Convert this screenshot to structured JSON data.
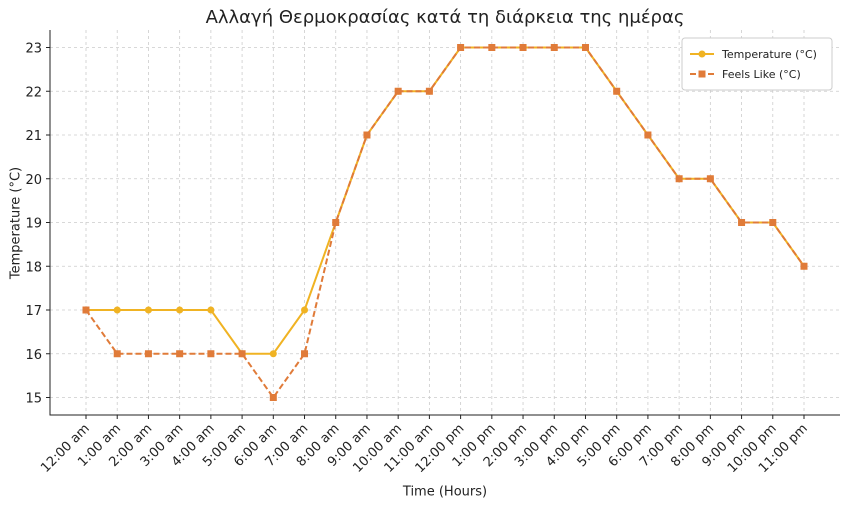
{
  "chart_data": {
    "type": "line",
    "title": "Αλλαγή Θερμοκρασίας κατά τη διάρκεια της ημέρας",
    "x_label": "Time (Hours)",
    "y_label": "Temperature (°C)",
    "categories": [
      "12:00 am",
      "1:00 am",
      "2:00 am",
      "3:00 am",
      "4:00 am",
      "5:00 am",
      "6:00 am",
      "7:00 am",
      "8:00 am",
      "9:00 am",
      "10:00 am",
      "11:00 am",
      "12:00 pm",
      "1:00 pm",
      "2:00 pm",
      "3:00 pm",
      "4:00 pm",
      "5:00 pm",
      "6:00 pm",
      "7:00 pm",
      "8:00 pm",
      "9:00 pm",
      "10:00 pm",
      "11:00 pm"
    ],
    "series": [
      {
        "name": "Temperature (°C)",
        "color": "#f0b323",
        "dashed": false,
        "marker": "circle",
        "values": [
          17,
          17,
          17,
          17,
          17,
          16,
          16,
          17,
          19,
          21,
          22,
          22,
          23,
          23,
          23,
          23,
          23,
          22,
          21,
          20,
          20,
          19,
          19,
          18
        ]
      },
      {
        "name": "Feels Like (°C)",
        "color": "#e07b39",
        "dashed": true,
        "marker": "square",
        "values": [
          17,
          16,
          16,
          16,
          16,
          16,
          15,
          16,
          19,
          21,
          22,
          22,
          23,
          23,
          23,
          23,
          23,
          22,
          21,
          20,
          20,
          19,
          19,
          18
        ]
      }
    ],
    "ylim": [
      14.6,
      23.4
    ],
    "yticks": [
      15,
      16,
      17,
      18,
      19,
      20,
      21,
      22,
      23
    ],
    "grid": true,
    "legend": "upper-right"
  }
}
